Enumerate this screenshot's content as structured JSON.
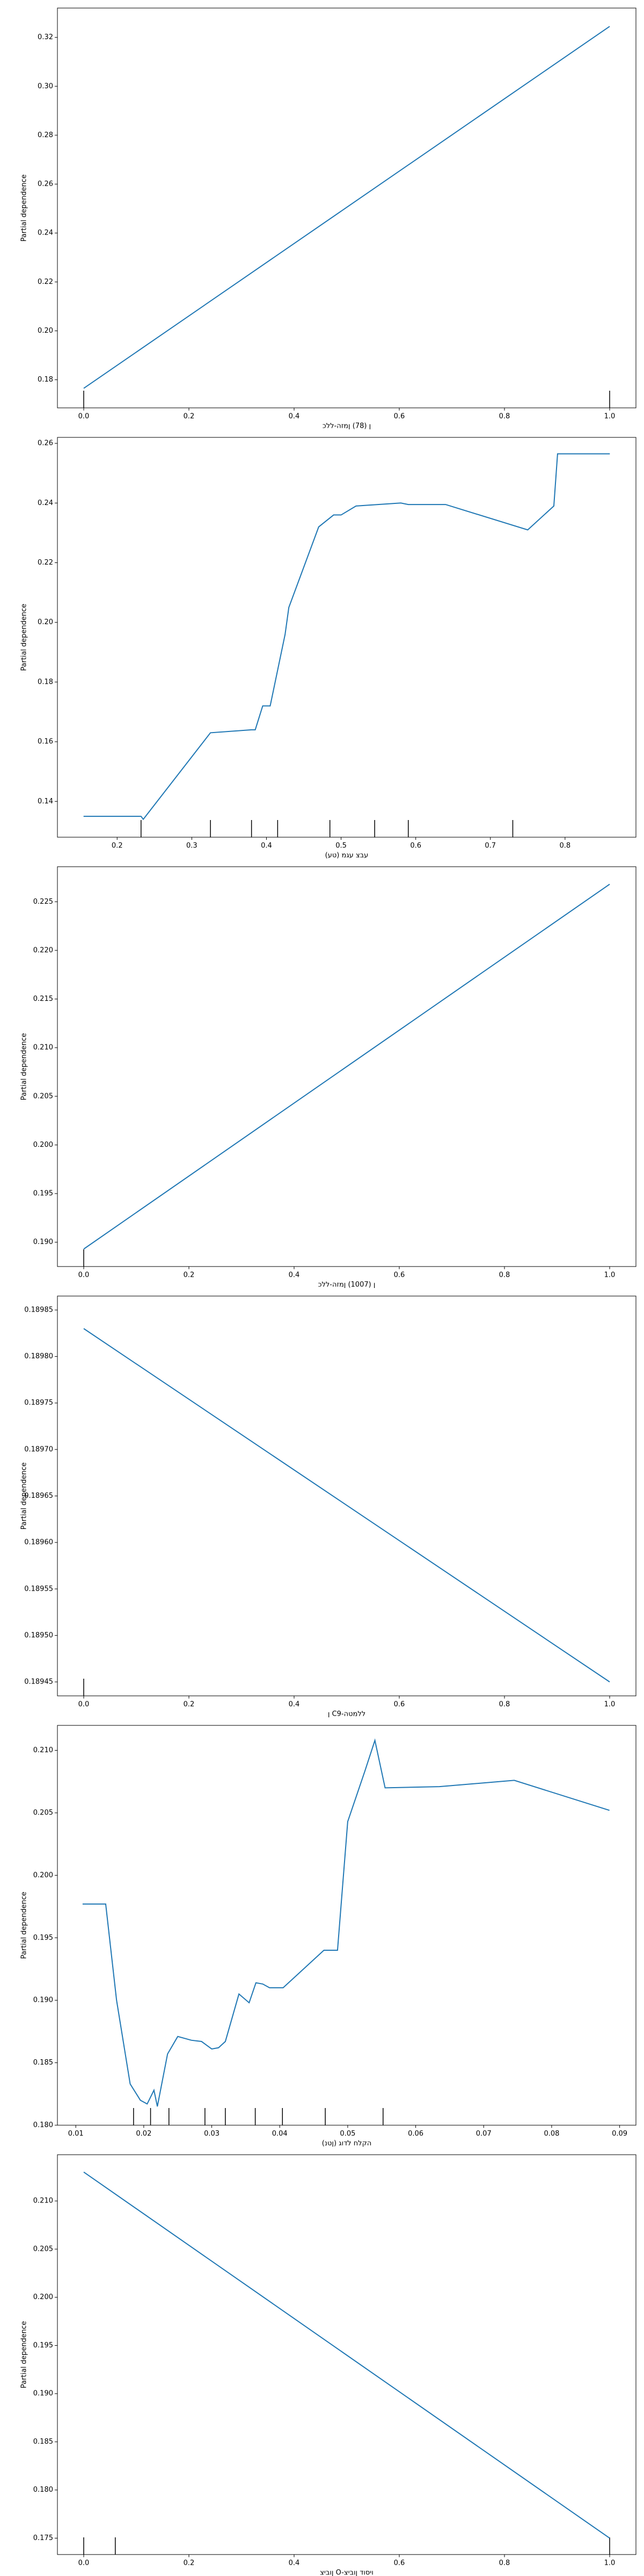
{
  "chart_data": [
    {
      "type": "line",
      "color": "#1f77b4",
      "ylabel": "Partial dependence",
      "xlabel": "ן (78) ןמזה-ללכ",
      "x": [
        0,
        1
      ],
      "values": [
        0.1765,
        0.3245
      ],
      "rug": [
        0,
        1
      ],
      "xlim": [
        -0.05,
        1.05
      ],
      "ylim": [
        0.1685,
        0.332
      ],
      "xticks": [
        {
          "value": 0,
          "label": "0.0"
        },
        0.2,
        0.4,
        0.6,
        0.8,
        {
          "value": 1,
          "label": "1.0"
        }
      ],
      "yticks": [
        0.18,
        {
          "value": 0.2,
          "label": "0.20"
        },
        0.22,
        0.24,
        0.26,
        0.28,
        {
          "value": 0.3,
          "label": "0.30"
        },
        0.32
      ]
    },
    {
      "type": "line",
      "color": "#1f77b4",
      "ylabel": "Partial dependence",
      "xlabel": "עבצ עגמ (טע)",
      "x": [
        0.155,
        0.232,
        0.235,
        0.325,
        0.38,
        0.385,
        0.395,
        0.405,
        0.425,
        0.43,
        0.47,
        0.49,
        0.5,
        0.52,
        0.58,
        0.59,
        0.64,
        0.75,
        0.785,
        0.79,
        0.86
      ],
      "values": [
        0.135,
        0.135,
        0.134,
        0.163,
        0.164,
        0.164,
        0.172,
        0.172,
        0.196,
        0.205,
        0.232,
        0.236,
        0.236,
        0.239,
        0.24,
        0.2395,
        0.2395,
        0.231,
        0.239,
        0.2565,
        0.2565
      ],
      "rug": [
        0.232,
        0.325,
        0.38,
        0.415,
        0.485,
        0.545,
        0.59,
        0.73
      ],
      "xlim": [
        0.12,
        0.895
      ],
      "ylim": [
        0.128,
        0.262
      ],
      "xticks": [
        0.2,
        0.3,
        0.4,
        0.5,
        0.6,
        0.7,
        0.8
      ],
      "yticks": [
        0.14,
        0.16,
        0.18,
        {
          "value": 0.2,
          "label": "0.20"
        },
        0.22,
        0.24,
        0.26
      ]
    },
    {
      "type": "line",
      "color": "#1f77b4",
      "ylabel": "Partial dependence",
      "xlabel": "ן (1007) ןמזה-ללכ",
      "x": [
        0,
        1
      ],
      "values": [
        0.1893,
        0.2268
      ],
      "rug": [
        0
      ],
      "xlim": [
        -0.05,
        1.05
      ],
      "ylim": [
        0.1875,
        0.2286
      ],
      "xticks": [
        {
          "value": 0,
          "label": "0.0"
        },
        0.2,
        0.4,
        0.6,
        0.8,
        {
          "value": 1,
          "label": "1.0"
        }
      ],
      "yticks": [
        {
          "value": 0.19,
          "label": "0.190"
        },
        0.195,
        {
          "value": 0.2,
          "label": "0.200"
        },
        0.205,
        {
          "value": 0.21,
          "label": "0.210"
        },
        0.215,
        {
          "value": 0.22,
          "label": "0.220"
        },
        0.225
      ]
    },
    {
      "type": "line",
      "color": "#1f77b4",
      "ylabel": "Partial dependence",
      "xlabel": "ן C9-ללמטה",
      "x": [
        0,
        1
      ],
      "values": [
        0.18983,
        0.18945
      ],
      "rug": [
        0
      ],
      "xlim": [
        -0.05,
        1.05
      ],
      "ylim": [
        0.189435,
        0.189865
      ],
      "xticks": [
        {
          "value": 0,
          "label": "0.0"
        },
        0.2,
        0.4,
        0.6,
        0.8,
        {
          "value": 1,
          "label": "1.0"
        }
      ],
      "yticks": [
        0.18945,
        {
          "value": 0.1895,
          "label": "0.18950"
        },
        0.18955,
        {
          "value": 0.1896,
          "label": "0.18960"
        },
        0.18965,
        {
          "value": 0.1897,
          "label": "0.18970"
        },
        0.18975,
        {
          "value": 0.1898,
          "label": "0.18980"
        },
        0.18985
      ]
    },
    {
      "type": "line",
      "color": "#1f77b4",
      "ylabel": "Partial dependence",
      "xlabel": "(ןטנ) הקלח לדוג",
      "x": [
        0.011,
        0.0144,
        0.016,
        0.018,
        0.0195,
        0.0205,
        0.0215,
        0.022,
        0.0235,
        0.025,
        0.027,
        0.0285,
        0.03,
        0.031,
        0.032,
        0.034,
        0.0355,
        0.0365,
        0.0375,
        0.0385,
        0.0405,
        0.0465,
        0.0485,
        0.05,
        0.0525,
        0.054,
        0.0555,
        0.0635,
        0.0745,
        0.0885
      ],
      "values": [
        0.1977,
        0.1977,
        0.19,
        0.1833,
        0.182,
        0.1817,
        0.1828,
        0.1815,
        0.1857,
        0.1871,
        0.1868,
        0.1867,
        0.1861,
        0.1862,
        0.1867,
        0.1905,
        0.1898,
        0.1914,
        0.1913,
        0.191,
        0.191,
        0.194,
        0.194,
        0.2043,
        0.2083,
        0.2108,
        0.207,
        0.2071,
        0.2076,
        0.2052
      ],
      "rug": [
        0.0185,
        0.021,
        0.0237,
        0.029,
        0.032,
        0.0364,
        0.0404,
        0.0467,
        0.0552
      ],
      "xlim": [
        0.0073,
        0.0924
      ],
      "ylim": [
        0.18,
        0.212
      ],
      "xticks": [
        0.01,
        0.02,
        0.03,
        0.04,
        0.05,
        0.06,
        0.07,
        0.08,
        0.09
      ],
      "yticks": [
        {
          "value": 0.18,
          "label": "0.180"
        },
        0.185,
        {
          "value": 0.19,
          "label": "0.190"
        },
        0.195,
        {
          "value": 0.2,
          "label": "0.200"
        },
        0.205,
        {
          "value": 0.21,
          "label": "0.210"
        }
      ]
    },
    {
      "type": "line",
      "color": "#1f77b4",
      "ylabel": "Partial dependence",
      "xlabel": "ןוביצ O-ויסוד ןוביצ",
      "x": [
        0,
        1
      ],
      "values": [
        0.213,
        0.175
      ],
      "rug": [
        0,
        0.06,
        1
      ],
      "xlim": [
        -0.05,
        1.05
      ],
      "ylim": [
        0.1733,
        0.2148
      ],
      "xticks": [
        {
          "value": 0,
          "label": "0.0"
        },
        0.2,
        0.4,
        0.6,
        0.8,
        {
          "value": 1,
          "label": "1.0"
        }
      ],
      "yticks": [
        0.175,
        {
          "value": 0.18,
          "label": "0.180"
        },
        0.185,
        {
          "value": 0.19,
          "label": "0.190"
        },
        0.195,
        {
          "value": 0.2,
          "label": "0.200"
        },
        0.205,
        {
          "value": 0.21,
          "label": "0.210"
        }
      ]
    }
  ]
}
